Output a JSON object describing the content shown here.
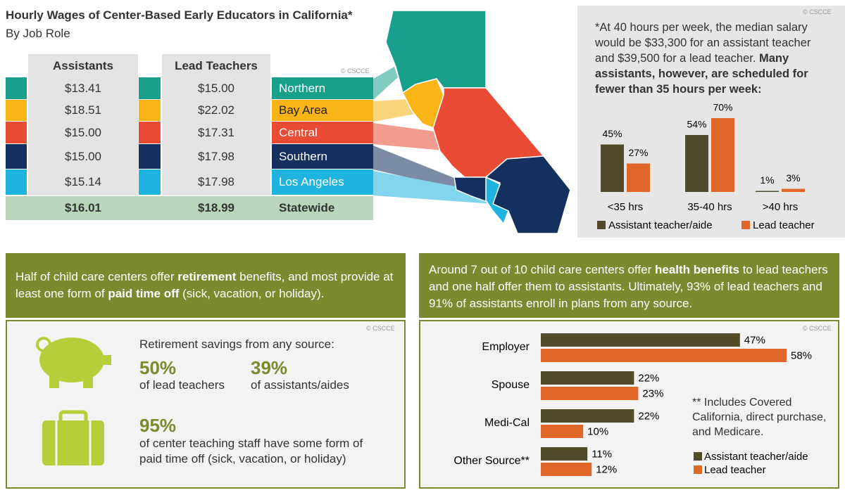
{
  "wages": {
    "title": "Hourly Wages of Center-Based Early Educators in California*",
    "subtitle": "By Job Role",
    "copyright": "© CSCCE",
    "columns": [
      "Assistants",
      "Lead Teachers"
    ],
    "rows": [
      {
        "region": "Northern",
        "color": "#19a08c",
        "label_color": "#ffffff",
        "assistants": "$13.41",
        "lead": "$15.00"
      },
      {
        "region": "Bay Area",
        "color": "#f9b416",
        "label_color": "#222222",
        "assistants": "$18.51",
        "lead": "$22.02"
      },
      {
        "region": "Central",
        "color": "#e94b35",
        "label_color": "#ffffff",
        "assistants": "$15.00",
        "lead": "$17.31"
      },
      {
        "region": "Southern",
        "color": "#14305e",
        "label_color": "#ffffff",
        "assistants": "$15.00",
        "lead": "$17.98"
      },
      {
        "region": "Los Angeles",
        "color": "#1fb3e0",
        "label_color": "#ffffff",
        "assistants": "$15.14",
        "lead": "$17.98"
      }
    ],
    "total": {
      "region": "Statewide",
      "color": "#b9d6bd",
      "assistants": "$16.01",
      "lead": "$18.99"
    }
  },
  "chart_data": [
    {
      "type": "bar",
      "copyright": "© CSCCE",
      "note": [
        "*At 40 hours per week, the median salary would be $33,300 for an assistant teacher and $39,500 for a lead teacher. ",
        "Many assistants, however, are scheduled for fewer than 35 hours per week:"
      ],
      "categories": [
        "<35 hrs",
        "35-40 hrs",
        ">40 hrs"
      ],
      "series": [
        {
          "name": "Assistant teacher/aide",
          "color": "#524b2a",
          "values": [
            45,
            54,
            1
          ],
          "value_labels": [
            "45%",
            "54%",
            "1%"
          ]
        },
        {
          "name": "Lead teacher",
          "color": "#e0672a",
          "values": [
            27,
            70,
            3
          ],
          "value_labels": [
            "27%",
            "70%",
            "3%"
          ]
        }
      ]
    },
    {
      "type": "barh",
      "copyright": "© CSCCE",
      "header": [
        "Around 7 out of 10 child care centers offer ",
        "health benefits",
        " to lead teachers and one half offer them to assistants. Ultimately, 93% of lead teachers and 91% of assistants enroll in plans from any source."
      ],
      "note": "** Includes Covered California, direct purchase, and Medicare.",
      "categories": [
        "Employer",
        "Spouse",
        "Medi-Cal",
        "Other Source**"
      ],
      "series": [
        {
          "name": "Assistant teacher/aide",
          "color": "#524b2a",
          "values": [
            47,
            22,
            22,
            11
          ],
          "value_labels": [
            "47%",
            "22%",
            "22%",
            "11%"
          ]
        },
        {
          "name": "Lead teacher",
          "color": "#e0672a",
          "values": [
            58,
            23,
            10,
            12
          ],
          "value_labels": [
            "58%",
            "23%",
            "10%",
            "12%"
          ]
        }
      ]
    }
  ],
  "retirement": {
    "header": [
      "Half of child care centers offer ",
      "retirement",
      " benefits, and most provide at least one form of ",
      "paid time off",
      " (sick, vacation, or holiday)."
    ],
    "copyright": "© CSCCE",
    "savings_title": "Retirement savings from any source:",
    "lead_stat": "50%",
    "lead_text": "of lead teachers",
    "assistant_stat": "39%",
    "assistant_text": "of assistants/aides",
    "pto_stat": "95%",
    "pto_text": "of center teaching staff have some form of paid time off (sick, vacation, or holiday)"
  }
}
